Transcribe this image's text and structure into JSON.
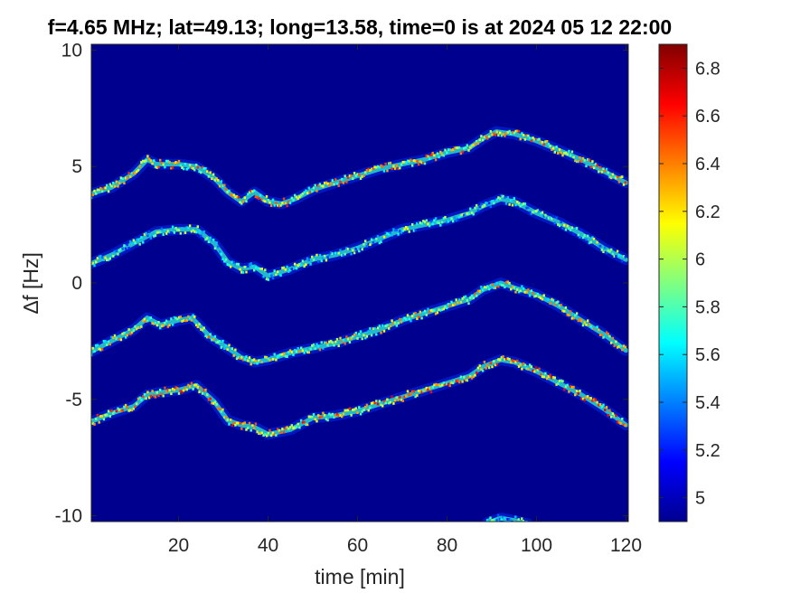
{
  "chart_data": {
    "type": "heatmap",
    "title": "f=4.65 MHz;  lat=49.13; long=13.58, time=0 is at 2024 05 12 22:00",
    "xlabel": "time [min]",
    "ylabel": "∆f [Hz]",
    "xlim": [
      0.5,
      120.5
    ],
    "ylim": [
      -10.25,
      10.25
    ],
    "x_ticks": [
      20,
      40,
      60,
      80,
      100,
      120
    ],
    "y_ticks": [
      10,
      5,
      0,
      -5,
      -10
    ],
    "colormap": "jet",
    "clim": [
      4.9,
      6.9
    ],
    "colorbar_ticks": [
      5,
      5.2,
      5.4,
      5.6,
      5.8,
      6,
      6.2,
      6.4,
      6.6,
      6.8
    ],
    "background_value": 4.95,
    "traces": [
      {
        "t": [
          0,
          5,
          10,
          13,
          15,
          20,
          24,
          28,
          31,
          34,
          37,
          40,
          43,
          46,
          50,
          55,
          60,
          65,
          70,
          75,
          80,
          85,
          88,
          91,
          95,
          100,
          105,
          110,
          115,
          120
        ],
        "df": [
          3.8,
          4.1,
          4.7,
          5.3,
          5.1,
          5.1,
          5.0,
          4.5,
          3.9,
          3.5,
          3.9,
          3.5,
          3.4,
          3.6,
          4.0,
          4.3,
          4.6,
          4.9,
          5.1,
          5.3,
          5.6,
          5.8,
          6.2,
          6.5,
          6.4,
          6.1,
          5.7,
          5.3,
          4.8,
          4.3
        ],
        "intensity": 6.6
      },
      {
        "t": [
          0,
          5,
          10,
          15,
          20,
          24,
          28,
          31,
          34,
          37,
          40,
          45,
          50,
          55,
          60,
          65,
          70,
          75,
          80,
          85,
          88,
          92,
          95,
          100,
          105,
          110,
          115,
          120
        ],
        "df": [
          0.8,
          1.2,
          1.7,
          2.2,
          2.3,
          2.3,
          1.7,
          0.9,
          0.6,
          0.7,
          0.3,
          0.6,
          1.0,
          1.2,
          1.5,
          1.9,
          2.3,
          2.5,
          2.7,
          3.0,
          3.3,
          3.6,
          3.5,
          3.0,
          2.6,
          2.1,
          1.5,
          1.0
        ],
        "intensity": 6.2
      },
      {
        "t": [
          0,
          5,
          10,
          13,
          16,
          20,
          23,
          27,
          31,
          34,
          37,
          40,
          45,
          50,
          55,
          60,
          65,
          70,
          75,
          80,
          85,
          88,
          92,
          95,
          100,
          105,
          110,
          115,
          120
        ],
        "df": [
          -3.0,
          -2.5,
          -2.0,
          -1.5,
          -1.8,
          -1.6,
          -1.5,
          -2.3,
          -2.8,
          -3.2,
          -3.4,
          -3.3,
          -3.0,
          -2.8,
          -2.6,
          -2.3,
          -2.0,
          -1.6,
          -1.3,
          -1.0,
          -0.7,
          -0.3,
          0.0,
          -0.2,
          -0.5,
          -1.0,
          -1.6,
          -2.2,
          -2.9
        ],
        "intensity": 6.5
      },
      {
        "t": [
          0,
          5,
          10,
          13,
          16,
          20,
          24,
          28,
          31,
          34,
          37,
          40,
          45,
          50,
          55,
          60,
          65,
          70,
          75,
          80,
          85,
          88,
          92,
          95,
          100,
          105,
          110,
          115,
          120
        ],
        "df": [
          -6.0,
          -5.6,
          -5.3,
          -4.8,
          -4.7,
          -4.6,
          -4.4,
          -5.1,
          -5.9,
          -6.1,
          -6.2,
          -6.5,
          -6.3,
          -5.8,
          -5.7,
          -5.5,
          -5.2,
          -4.9,
          -4.6,
          -4.3,
          -4.0,
          -3.6,
          -3.3,
          -3.4,
          -3.8,
          -4.3,
          -4.8,
          -5.4,
          -6.1
        ],
        "intensity": 6.7
      },
      {
        "t": [
          89,
          92,
          95,
          98
        ],
        "df": [
          -10.3,
          -10.1,
          -10.2,
          -10.35
        ],
        "intensity": 6.0
      }
    ]
  }
}
